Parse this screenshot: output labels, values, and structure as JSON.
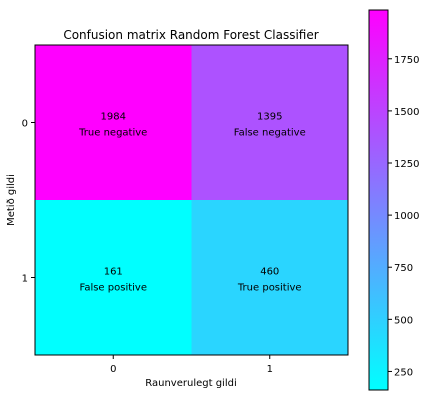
{
  "chart_data": {
    "type": "heatmap",
    "title": "Confusion matrix Random Forest Classifier",
    "xlabel": "Raunverulegt gildi",
    "ylabel": "Metið gildi",
    "x_categories": [
      "0",
      "1"
    ],
    "y_categories": [
      "0",
      "1"
    ],
    "values": [
      [
        1984,
        1395
      ],
      [
        161,
        460
      ]
    ],
    "cell_labels": [
      [
        "True negative",
        "False negative"
      ],
      [
        "False positive",
        "True positive"
      ]
    ],
    "colormap": "cool",
    "colormap_colors": [
      "#00ffff",
      "#ff00ff"
    ],
    "colorbar": {
      "vmin": 161,
      "vmax": 1984,
      "ticks": [
        250,
        500,
        750,
        1000,
        1250,
        1500,
        1750
      ]
    }
  }
}
